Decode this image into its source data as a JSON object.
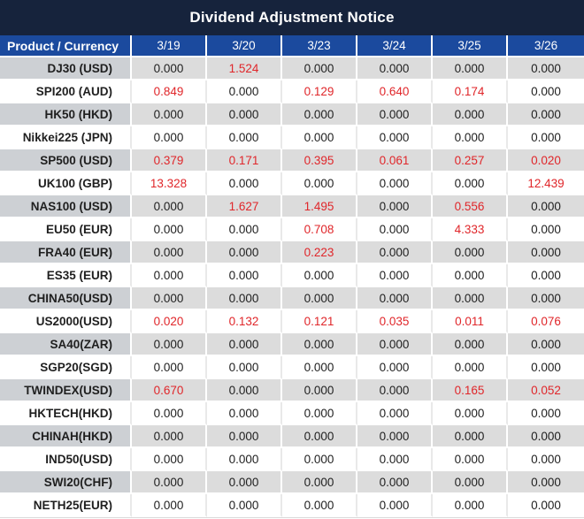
{
  "title": "Dividend Adjustment Notice",
  "colors": {
    "title_bar": "#16233C",
    "header_blue": "#1B4A9E",
    "row_stripe_gray": "#DCDCDC",
    "product_column_gray": "#CDD0D4",
    "nonzero_value_red": "#E0262A",
    "text_black": "#1F1F1F"
  },
  "table": {
    "header": [
      "Product / Currency",
      "3/19",
      "3/20",
      "3/23",
      "3/24",
      "3/25",
      "3/26"
    ],
    "zero_value": "0.000",
    "rows": [
      {
        "label": "DJ30 (USD)",
        "values": [
          "0.000",
          "1.524",
          "0.000",
          "0.000",
          "0.000",
          "0.000"
        ]
      },
      {
        "label": "SPI200 (AUD)",
        "values": [
          "0.849",
          "0.000",
          "0.129",
          "0.640",
          "0.174",
          "0.000"
        ]
      },
      {
        "label": "HK50 (HKD)",
        "values": [
          "0.000",
          "0.000",
          "0.000",
          "0.000",
          "0.000",
          "0.000"
        ]
      },
      {
        "label": "Nikkei225 (JPN)",
        "values": [
          "0.000",
          "0.000",
          "0.000",
          "0.000",
          "0.000",
          "0.000"
        ]
      },
      {
        "label": "SP500 (USD)",
        "values": [
          "0.379",
          "0.171",
          "0.395",
          "0.061",
          "0.257",
          "0.020"
        ]
      },
      {
        "label": "UK100 (GBP)",
        "values": [
          "13.328",
          "0.000",
          "0.000",
          "0.000",
          "0.000",
          "12.439"
        ]
      },
      {
        "label": "NAS100 (USD)",
        "values": [
          "0.000",
          "1.627",
          "1.495",
          "0.000",
          "0.556",
          "0.000"
        ]
      },
      {
        "label": "EU50 (EUR)",
        "values": [
          "0.000",
          "0.000",
          "0.708",
          "0.000",
          "4.333",
          "0.000"
        ]
      },
      {
        "label": "FRA40 (EUR)",
        "values": [
          "0.000",
          "0.000",
          "0.223",
          "0.000",
          "0.000",
          "0.000"
        ]
      },
      {
        "label": "ES35 (EUR)",
        "values": [
          "0.000",
          "0.000",
          "0.000",
          "0.000",
          "0.000",
          "0.000"
        ]
      },
      {
        "label": "CHINA50(USD)",
        "values": [
          "0.000",
          "0.000",
          "0.000",
          "0.000",
          "0.000",
          "0.000"
        ]
      },
      {
        "label": "US2000(USD)",
        "values": [
          "0.020",
          "0.132",
          "0.121",
          "0.035",
          "0.011",
          "0.076"
        ]
      },
      {
        "label": "SA40(ZAR)",
        "values": [
          "0.000",
          "0.000",
          "0.000",
          "0.000",
          "0.000",
          "0.000"
        ]
      },
      {
        "label": "SGP20(SGD)",
        "values": [
          "0.000",
          "0.000",
          "0.000",
          "0.000",
          "0.000",
          "0.000"
        ]
      },
      {
        "label": "TWINDEX(USD)",
        "values": [
          "0.670",
          "0.000",
          "0.000",
          "0.000",
          "0.165",
          "0.052"
        ]
      },
      {
        "label": "HKTECH(HKD)",
        "values": [
          "0.000",
          "0.000",
          "0.000",
          "0.000",
          "0.000",
          "0.000"
        ]
      },
      {
        "label": "CHINAH(HKD)",
        "values": [
          "0.000",
          "0.000",
          "0.000",
          "0.000",
          "0.000",
          "0.000"
        ]
      },
      {
        "label": "IND50(USD)",
        "values": [
          "0.000",
          "0.000",
          "0.000",
          "0.000",
          "0.000",
          "0.000"
        ]
      },
      {
        "label": "SWI20(CHF)",
        "values": [
          "0.000",
          "0.000",
          "0.000",
          "0.000",
          "0.000",
          "0.000"
        ]
      },
      {
        "label": "NETH25(EUR)",
        "values": [
          "0.000",
          "0.000",
          "0.000",
          "0.000",
          "0.000",
          "0.000"
        ]
      }
    ]
  }
}
